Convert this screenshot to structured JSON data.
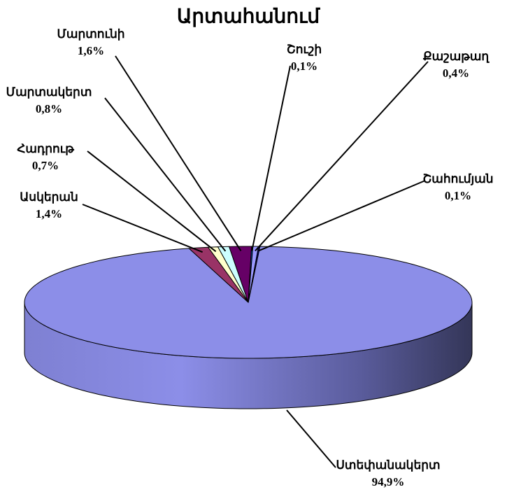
{
  "chart_data": {
    "type": "pie",
    "title": "Արտահանում",
    "categories": [
      "Ստեփանակերտ",
      "Ասկերան",
      "Հադրութ",
      "Մարտակերտ",
      "Մարտունի",
      "Շուշի",
      "Քաշաթաղ",
      "Շահումյան"
    ],
    "values": [
      94.9,
      1.4,
      0.7,
      0.8,
      1.6,
      0.1,
      0.4,
      0.1
    ],
    "value_labels": [
      "94,9%",
      "1,4%",
      "0,7%",
      "0,8%",
      "1,6%",
      "0,1%",
      "0,4%",
      "0,1%"
    ],
    "colors": [
      "#8c8ee8",
      "#993366",
      "#ffffcc",
      "#ccffff",
      "#660066",
      "#0066cc",
      "#9999ff",
      "#000080"
    ]
  }
}
